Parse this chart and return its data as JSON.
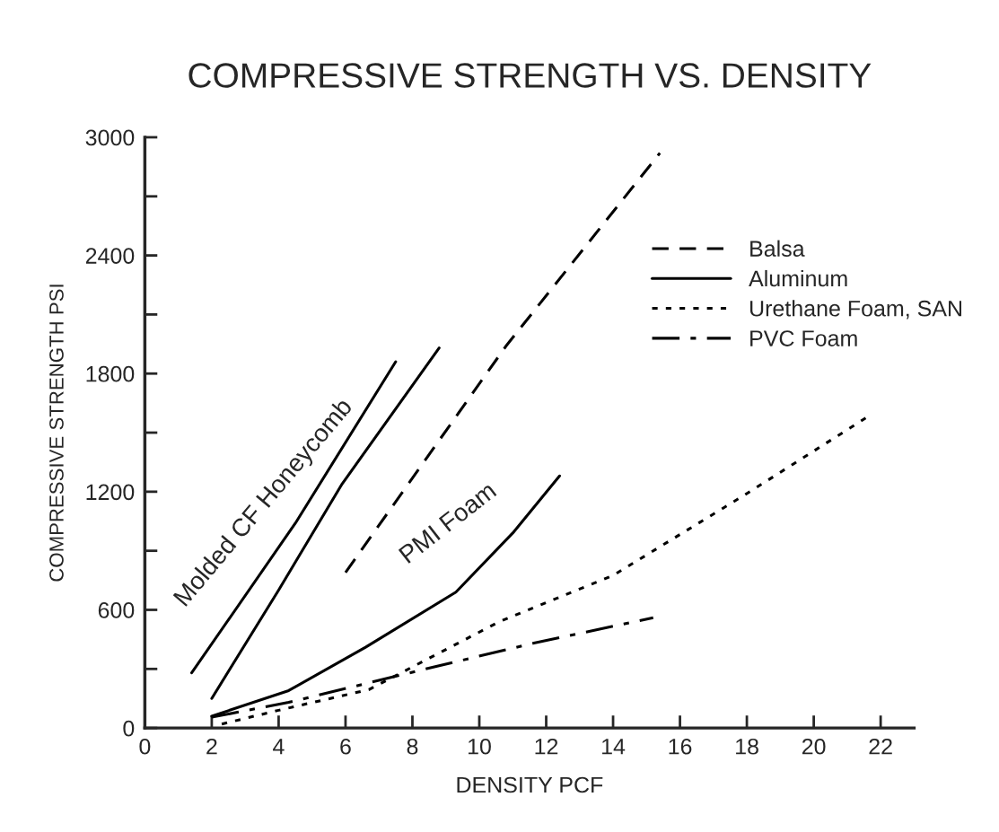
{
  "chart_data": {
    "type": "line",
    "title": "COMPRESSIVE STRENGTH VS. DENSITY",
    "xlabel": "DENSITY PCF",
    "ylabel": "COMPRESSIVE STRENGTH PSI",
    "series": [
      {
        "color": "#000000",
        "line_style": "solid",
        "x": [
          1.4,
          4.5,
          7.5
        ],
        "values": [
          280,
          1040,
          1860
        ]
      },
      {
        "name": "Balsa",
        "color": "#000000",
        "line_style": "dashed",
        "x": [
          6,
          10.8,
          15.4
        ],
        "values": [
          790,
          1940,
          2920
        ]
      },
      {
        "name": "Aluminum",
        "color": "#000000",
        "line_style": "solid",
        "x": [
          2,
          4,
          5.9,
          8.8
        ],
        "values": [
          150,
          700,
          1240,
          1930
        ]
      },
      {
        "color": "#000000",
        "line_style": "solid",
        "x": [
          2,
          4.3,
          6.6,
          9.3,
          11,
          12.4
        ],
        "values": [
          60,
          190,
          410,
          690,
          990,
          1280
        ]
      },
      {
        "name": "Urethane Foam, SAN",
        "color": "#000000",
        "line_style": "dotted",
        "x": [
          2.3,
          4,
          6.7,
          10.6,
          14,
          17.9,
          21.7
        ],
        "values": [
          20,
          90,
          195,
          540,
          775,
          1180,
          1590
        ]
      },
      {
        "name": "PVC Foam",
        "color": "#000000",
        "line_style": "dashdot",
        "x": [
          2,
          4.3,
          8.4,
          11.6,
          15.2
        ],
        "values": [
          55,
          130,
          300,
          430,
          560
        ]
      }
    ],
    "annotations": [
      "Molded CF Honeycomb",
      "PMI Foam"
    ],
    "xlim": [
      0,
      23
    ],
    "xticks": [
      0,
      2,
      4,
      6,
      8,
      10,
      12,
      14,
      16,
      18,
      20,
      22
    ],
    "ylim": [
      0,
      3000
    ],
    "yticks": [
      0,
      {
        "value": 300,
        "label": null
      },
      600,
      {
        "value": 900,
        "label": null
      },
      1200,
      {
        "value": 1500,
        "label": null
      },
      1800,
      {
        "value": 2100,
        "label": null
      },
      2400,
      {
        "value": 2700,
        "label": null
      },
      3000
    ],
    "grid": false,
    "legend": "top right",
    "marker": "none"
  }
}
